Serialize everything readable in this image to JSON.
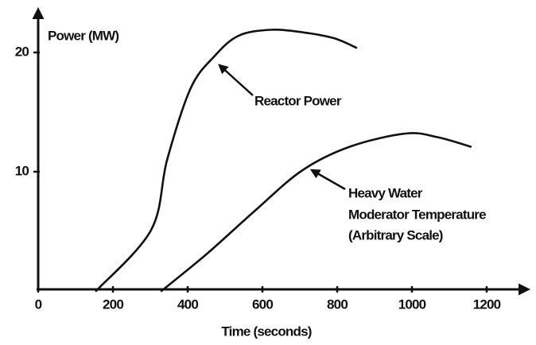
{
  "chart_data": {
    "type": "line",
    "y_label": "Power (MW)",
    "x_label": "Time (seconds)",
    "xlim": [
      0,
      1300
    ],
    "ylim": [
      0,
      23.5
    ],
    "xticks": [
      0,
      200,
      400,
      600,
      800,
      1000,
      1200
    ],
    "yticks": [
      10,
      20
    ],
    "series": [
      {
        "name": "Reactor Power",
        "color": "#111111",
        "x": [
          155,
          302,
          345,
          408,
          472,
          536,
          621,
          706,
          791,
          851
        ],
        "values": [
          0,
          5.1,
          11,
          17,
          19.7,
          21.4,
          21.9,
          21.7,
          21.2,
          20.4
        ]
      },
      {
        "name": "Heavy Water Moderator Temperature",
        "color": "#111111",
        "x": [
          330,
          451,
          579,
          706,
          834,
          983,
          1068,
          1157
        ],
        "values": [
          0,
          3.1,
          6.7,
          10.1,
          12.1,
          13.2,
          12.9,
          12.1
        ]
      }
    ],
    "annotations": [
      "Reactor Power",
      "Heavy Water",
      "Moderator Temperature",
      "(Arbitrary Scale)"
    ]
  }
}
